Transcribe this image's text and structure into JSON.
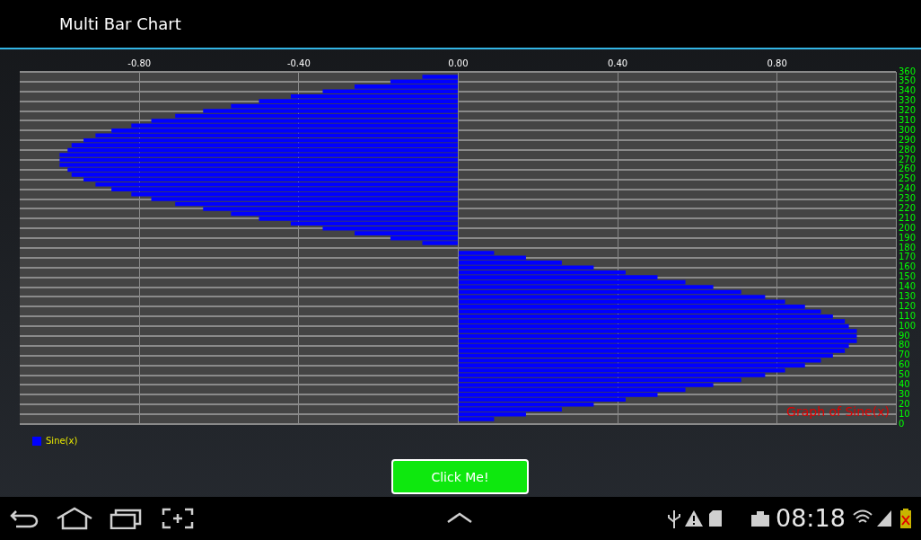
{
  "chart_data": {
    "type": "bar",
    "orientation": "horizontal",
    "title": "Multi Bar Chart",
    "x": [
      0,
      5,
      10,
      15,
      20,
      25,
      30,
      35,
      40,
      45,
      50,
      55,
      60,
      65,
      70,
      75,
      80,
      85,
      90,
      95,
      100,
      105,
      110,
      115,
      120,
      125,
      130,
      135,
      140,
      145,
      150,
      155,
      160,
      165,
      170,
      175,
      180,
      185,
      190,
      195,
      200,
      205,
      210,
      215,
      220,
      225,
      230,
      235,
      240,
      245,
      250,
      255,
      260,
      265,
      270,
      275,
      280,
      285,
      290,
      295,
      300,
      305,
      310,
      315,
      320,
      325,
      330,
      335,
      340,
      345,
      350,
      355
    ],
    "series": [
      {
        "name": "Sine(x)",
        "color": "#0000ff",
        "values": [
          0,
          0.09,
          0.17,
          0.26,
          0.34,
          0.42,
          0.5,
          0.57,
          0.64,
          0.71,
          0.77,
          0.82,
          0.87,
          0.91,
          0.94,
          0.97,
          0.98,
          1.0,
          1.0,
          1.0,
          0.98,
          0.97,
          0.94,
          0.91,
          0.87,
          0.82,
          0.77,
          0.71,
          0.64,
          0.57,
          0.5,
          0.42,
          0.34,
          0.26,
          0.17,
          0.09,
          0,
          -0.09,
          -0.17,
          -0.26,
          -0.34,
          -0.42,
          -0.5,
          -0.57,
          -0.64,
          -0.71,
          -0.77,
          -0.82,
          -0.87,
          -0.91,
          -0.94,
          -0.97,
          -0.98,
          -1.0,
          -1.0,
          -1.0,
          -0.98,
          -0.97,
          -0.94,
          -0.91,
          -0.87,
          -0.82,
          -0.77,
          -0.71,
          -0.64,
          -0.57,
          -0.5,
          -0.42,
          -0.34,
          -0.26,
          -0.17,
          -0.09
        ]
      }
    ],
    "xlim": [
      -1.1,
      1.1
    ],
    "xticks": [
      {
        "value": -0.8,
        "label": "-0.80"
      },
      {
        "value": -0.4,
        "label": "-0.40"
      },
      {
        "value": 0,
        "label": "0.00"
      },
      {
        "value": 0.4,
        "label": "0.40"
      },
      {
        "value": 0.8,
        "label": "0.80"
      }
    ],
    "ylim": [
      0,
      360
    ],
    "yticks": [
      0,
      10,
      20,
      30,
      40,
      50,
      60,
      70,
      80,
      90,
      100,
      110,
      120,
      130,
      140,
      150,
      160,
      170,
      180,
      190,
      200,
      210,
      220,
      230,
      240,
      250,
      260,
      270,
      280,
      290,
      300,
      310,
      320,
      330,
      340,
      350,
      360
    ],
    "grid": true,
    "legend": "bottom left",
    "annotations": [
      "Graph of Sine(x)",
      "Click Me!",
      "08:18"
    ]
  }
}
